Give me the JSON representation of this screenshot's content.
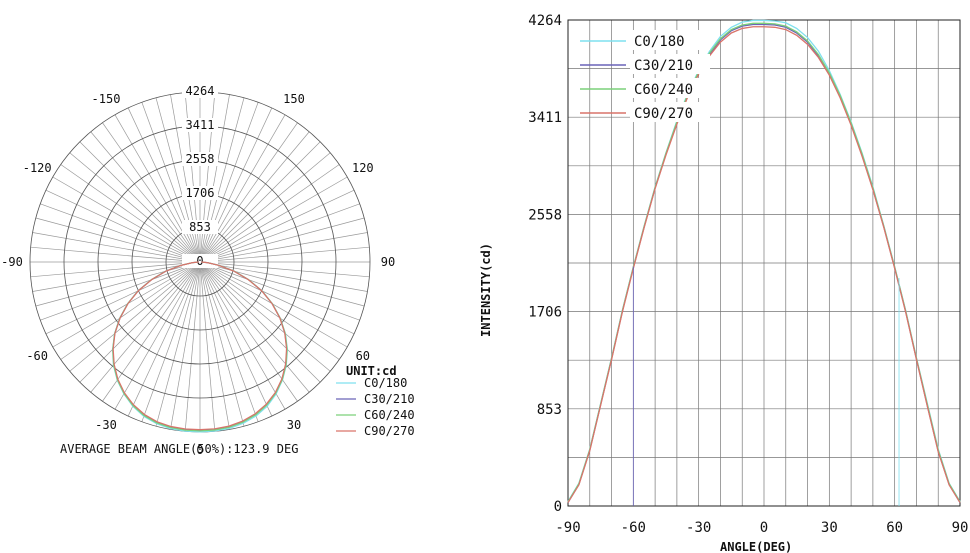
{
  "chart_data": [
    {
      "type": "polar",
      "radial_ticks": [
        "0",
        "853",
        "1706",
        "2558",
        "3411",
        "4264"
      ],
      "radial_max": 4264,
      "angle_labels": [
        {
          "angle": 0,
          "text": "0"
        },
        {
          "angle": 30,
          "text": "30"
        },
        {
          "angle": -30,
          "text": "-30"
        },
        {
          "angle": 60,
          "text": "60"
        },
        {
          "angle": -60,
          "text": "-60"
        },
        {
          "angle": 90,
          "text": "90"
        },
        {
          "angle": -90,
          "text": "-90"
        },
        {
          "angle": 120,
          "text": "120"
        },
        {
          "angle": -120,
          "text": "-120"
        },
        {
          "angle": 150,
          "text": "150"
        },
        {
          "angle": -150,
          "text": "-150"
        }
      ],
      "grid": true,
      "legend_title": "UNIT:cd",
      "legend_position": "bottom-right",
      "footer": "AVERAGE BEAM ANGLE(50%):123.9 DEG"
    },
    {
      "type": "line",
      "xlabel": "ANGLE(DEG)",
      "ylabel": "INTENSITY(cd)",
      "xlim": [
        -90,
        90
      ],
      "ylim": [
        0,
        4264
      ],
      "xticks": [
        "-90",
        "-60",
        "-30",
        "0",
        "30",
        "60",
        "90"
      ],
      "yticks": [
        "0",
        "853",
        "1706",
        "2558",
        "3411",
        "4264"
      ],
      "grid": true,
      "legend_position": "top-left",
      "x": [
        -90,
        -85,
        -80,
        -75,
        -70,
        -65,
        -60,
        -55,
        -50,
        -45,
        -40,
        -35,
        -30,
        -25,
        -20,
        -15,
        -10,
        -5,
        0,
        5,
        10,
        15,
        20,
        25,
        30,
        35,
        40,
        45,
        50,
        55,
        60,
        65,
        70,
        75,
        80,
        85,
        90
      ],
      "series": [
        {
          "name": "C0/180",
          "color": "#7fe0ef",
          "values": [
            40,
            200,
            500,
            900,
            1300,
            1720,
            2100,
            2460,
            2800,
            3100,
            3380,
            3620,
            3820,
            3990,
            4120,
            4200,
            4245,
            4260,
            4260,
            4255,
            4240,
            4190,
            4110,
            3990,
            3820,
            3610,
            3370,
            3100,
            2800,
            2460,
            2100,
            1720,
            1300,
            900,
            500,
            200,
            40
          ]
        },
        {
          "name": "C30/210",
          "color": "#6a63b8",
          "values": [
            30,
            190,
            490,
            890,
            1290,
            1710,
            2090,
            2450,
            2790,
            3090,
            3360,
            3600,
            3800,
            3960,
            4090,
            4170,
            4210,
            4225,
            4225,
            4220,
            4200,
            4150,
            4070,
            3950,
            3790,
            3590,
            3350,
            3080,
            2780,
            2450,
            2090,
            1710,
            1290,
            880,
            480,
            190,
            30
          ]
        },
        {
          "name": "C60/240",
          "color": "#7cd07a",
          "values": [
            35,
            195,
            495,
            895,
            1295,
            1715,
            2095,
            2455,
            2795,
            3095,
            3370,
            3610,
            3810,
            3975,
            4100,
            4180,
            4220,
            4235,
            4235,
            4230,
            4210,
            4160,
            4080,
            3960,
            3800,
            3600,
            3360,
            3090,
            2790,
            2455,
            2095,
            1715,
            1295,
            890,
            490,
            195,
            35
          ]
        },
        {
          "name": "C90/270",
          "color": "#d9736a",
          "values": [
            30,
            185,
            485,
            885,
            1285,
            1705,
            2085,
            2445,
            2785,
            3080,
            3350,
            3590,
            3790,
            3950,
            4070,
            4150,
            4190,
            4205,
            4205,
            4200,
            4180,
            4130,
            4050,
            3935,
            3780,
            3580,
            3340,
            3070,
            2775,
            2445,
            2085,
            1705,
            1285,
            875,
            475,
            185,
            30
          ]
        }
      ]
    }
  ]
}
